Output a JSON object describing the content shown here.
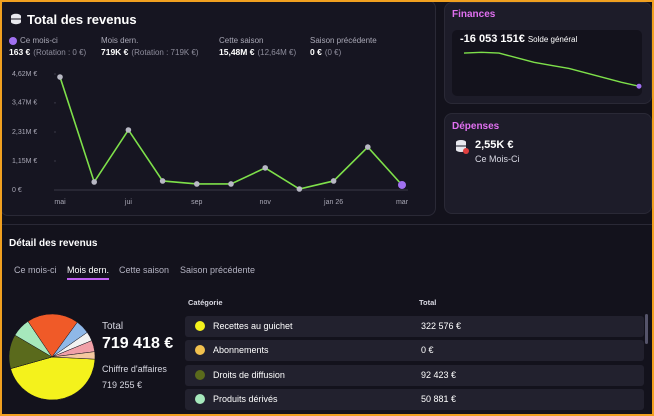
{
  "header": {
    "title": "Total des revenus"
  },
  "stats": [
    {
      "label": "Ce mois-ci",
      "value": "163 €",
      "note": "(Rotation : 0 €)",
      "color": "#a070f0"
    },
    {
      "label": "Mois dern.",
      "value": "719K €",
      "note": "(Rotation : 719K €)"
    },
    {
      "label": "Cette saison",
      "value": "15,48M €",
      "note": "(12,64M €)"
    },
    {
      "label": "Saison précédente",
      "value": "0 €",
      "note": "(0 €)"
    }
  ],
  "finances": {
    "title": "Finances",
    "balance": "-16 053 151€",
    "balance_label": "Solde général"
  },
  "expenses": {
    "title": "Dépenses",
    "amount": "2,55K €",
    "period": "Ce Mois-Ci"
  },
  "detail": {
    "title": "Détail des revenus",
    "tabs": [
      "Ce mois-ci",
      "Mois dern.",
      "Cette saison",
      "Saison précédente"
    ],
    "active_tab": 1,
    "total_label": "Total",
    "total": "719 418 €",
    "turnover_label": "Chiffre d'affaires",
    "turnover": "719 255 €"
  },
  "table": {
    "columns": [
      "Catégorie",
      "Total"
    ],
    "rows": [
      {
        "color": "#f4f21c",
        "name": "Recettes au guichet",
        "total": "322 576 €"
      },
      {
        "color": "#f2c14e",
        "name": "Abonnements",
        "total": "0 €"
      },
      {
        "color": "#5a6a1c",
        "name": "Droits de diffusion",
        "total": "92 423 €"
      },
      {
        "color": "#a6e8bc",
        "name": "Produits dérivés",
        "total": "50 881 €"
      }
    ]
  },
  "chart_data": [
    {
      "type": "line",
      "categories": [
        "mai",
        null,
        "jui",
        null,
        "sep",
        null,
        "nov",
        null,
        "jan 26",
        null,
        "mar"
      ],
      "values": [
        4500000,
        320000,
        2390000,
        360000,
        240000,
        240000,
        880000,
        40000,
        360000,
        1710000,
        200000
      ],
      "color": "#7ee04a",
      "point_color": "#b8b8c4",
      "last_point_color": "#a070f0",
      "ylim": [
        0,
        4620000
      ],
      "yticks": [
        {
          "value": 0,
          "label": "0 €"
        },
        {
          "value": 1155000,
          "label": "1,15M €"
        },
        {
          "value": 2310000,
          "label": "2,31M €"
        },
        {
          "value": 3470000,
          "label": "3,47M €"
        },
        {
          "value": 4620000,
          "label": "4,62M €"
        }
      ]
    },
    {
      "type": "pie",
      "values": [
        322576,
        0,
        92423,
        50881,
        140000,
        38000,
        25000,
        30538,
        20000
      ],
      "colors": [
        "#f4f21c",
        "#f2c14e",
        "#5a6a1c",
        "#a6e8bc",
        "#f05a28",
        "#8fb8e8",
        "#f2f2f2",
        "#f0a0a8",
        "#f5c8a0"
      ]
    },
    {
      "type": "line",
      "values": [
        -13900000,
        -13850000,
        -13900000,
        -14200000,
        -14500000,
        -14700000,
        -14900000,
        -15200000,
        -15500000,
        -15800000,
        -16053151
      ],
      "color": "#7ee04a",
      "last_point_color": "#a070f0",
      "ylim": [
        -16300000,
        -13700000
      ]
    }
  ]
}
